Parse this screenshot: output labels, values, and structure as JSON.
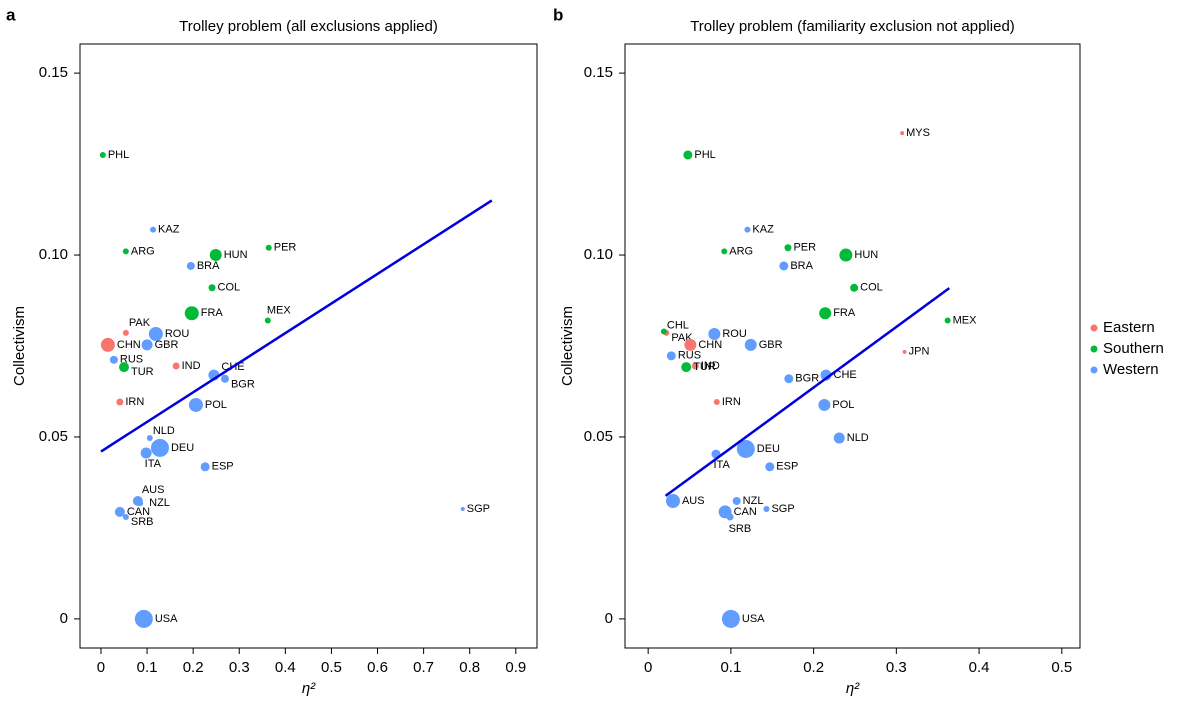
{
  "chart_data": [
    {
      "type": "scatter",
      "panel_label": "a",
      "title": "Trolley problem (all exclusions applied)",
      "xlabel": "η²",
      "ylabel": "Collectivism",
      "xlim": [
        -0.0455,
        0.946
      ],
      "ylim": [
        -0.008,
        0.158
      ],
      "xticks": [
        0,
        0.1,
        0.2,
        0.3,
        0.4,
        0.5,
        0.6,
        0.7,
        0.8,
        0.9
      ],
      "yticks": [
        0,
        0.05,
        {
          "value": 0.1,
          "label": "0.10"
        },
        0.15
      ],
      "legend": false,
      "series": [
        {
          "name": "Eastern",
          "color": "#f8766d",
          "labels": [
            "PAK",
            "CHN",
            "IND",
            "IRN"
          ],
          "x": [
            0.054,
            0.015,
            0.163,
            0.041
          ],
          "y": [
            0.0786,
            0.0753,
            0.0695,
            0.0596
          ],
          "sizes": [
            3,
            7,
            3.5,
            3.5
          ]
        },
        {
          "name": "Southern",
          "color": "#00ba38",
          "labels": [
            "PHL",
            "ARG",
            "HUN",
            "PER",
            "COL",
            "MEX",
            "FRA",
            "TUR"
          ],
          "x": [
            0.004,
            0.054,
            0.249,
            0.364,
            0.241,
            0.362,
            0.197,
            0.05
          ],
          "y": [
            0.1275,
            0.101,
            0.1,
            0.102,
            0.091,
            0.082,
            0.084,
            0.0692
          ],
          "sizes": [
            3,
            3,
            6,
            3,
            3.5,
            3,
            7,
            5
          ]
        },
        {
          "name": "Western",
          "color": "#619cff",
          "labels": [
            "KAZ",
            "BRA",
            "ROU",
            "GBR",
            "RUS",
            "CHE",
            "BGR",
            "POL",
            "NLD",
            "DEU",
            "ITA",
            "ESP",
            "SGP",
            "AUS",
            "NZL",
            "CAN",
            "SRB",
            "USA"
          ],
          "x": [
            0.113,
            0.195,
            0.119,
            0.1,
            0.028,
            0.245,
            0.269,
            0.206,
            0.106,
            0.128,
            0.098,
            0.226,
            0.785,
            0.08,
            0.085,
            0.041,
            0.054,
            0.093
          ],
          "y": [
            0.107,
            0.097,
            0.0783,
            0.0753,
            0.0712,
            0.067,
            0.066,
            0.0588,
            0.0497,
            0.047,
            0.0456,
            0.0418,
            0.0302,
            0.0324,
            0.0318,
            0.0294,
            0.028,
            0
          ],
          "sizes": [
            3,
            4,
            7,
            5.5,
            4,
            5.5,
            4,
            7,
            3,
            9,
            5.5,
            4.5,
            2,
            5,
            3,
            5,
            3,
            9
          ]
        }
      ],
      "fit": {
        "color": "#0000dd",
        "x": [
          0,
          0.848
        ],
        "y": [
          0.046,
          0.115
        ]
      }
    },
    {
      "type": "scatter",
      "panel_label": "b",
      "title": "Trolley problem (familiarity exclusion not applied)",
      "xlabel": "η²",
      "ylabel": "Collectivism",
      "xlim": [
        -0.028,
        0.522
      ],
      "ylim": [
        -0.008,
        0.158
      ],
      "xticks": [
        0,
        0.1,
        0.2,
        0.3,
        0.4,
        0.5
      ],
      "yticks": [
        0,
        0.05,
        {
          "value": 0.1,
          "label": "0.10"
        },
        0.15
      ],
      "legend": "right",
      "series": [
        {
          "name": "Eastern",
          "color": "#f8766d",
          "labels": [
            "MYS",
            "PAK",
            "CHN",
            "JPN",
            "IND",
            "IRN"
          ],
          "x": [
            0.307,
            0.022,
            0.051,
            0.31,
            0.057,
            0.083
          ],
          "y": [
            0.1335,
            0.0786,
            0.0753,
            0.0734,
            0.0695,
            0.0596
          ],
          "sizes": [
            2,
            3,
            6,
            2,
            3.5,
            3
          ]
        },
        {
          "name": "Southern",
          "color": "#00ba38",
          "labels": [
            "PHL",
            "ARG",
            "PER",
            "HUN",
            "COL",
            "CHL",
            "MEX",
            "FRA",
            "TUR"
          ],
          "x": [
            0.048,
            0.092,
            0.169,
            0.239,
            0.249,
            0.019,
            0.362,
            0.214,
            0.046
          ],
          "y": [
            0.1275,
            0.101,
            0.102,
            0.1,
            0.091,
            0.079,
            0.082,
            0.084,
            0.0692
          ],
          "sizes": [
            4.5,
            3,
            3.5,
            6.5,
            4,
            3,
            3,
            6,
            5
          ]
        },
        {
          "name": "Western",
          "color": "#619cff",
          "labels": [
            "KAZ",
            "BRA",
            "ROU",
            "GBR",
            "RUS",
            "BGR",
            "CHE",
            "POL",
            "NLD",
            "DEU",
            "ITA",
            "ESP",
            "AUS",
            "NZL",
            "SGP",
            "CAN",
            "SRB",
            "USA"
          ],
          "x": [
            0.12,
            0.164,
            0.08,
            0.124,
            0.028,
            0.17,
            0.215,
            0.213,
            0.231,
            0.118,
            0.082,
            0.147,
            0.03,
            0.107,
            0.143,
            0.093,
            0.099,
            0.1
          ],
          "y": [
            0.107,
            0.097,
            0.0783,
            0.0753,
            0.0723,
            0.066,
            0.067,
            0.0588,
            0.0497,
            0.0467,
            0.0453,
            0.0418,
            0.0324,
            0.0324,
            0.0302,
            0.0294,
            0.028,
            0
          ],
          "sizes": [
            3,
            4.5,
            6,
            6,
            4.5,
            4.5,
            5.5,
            6,
            5.5,
            9,
            4.5,
            4.5,
            7,
            4,
            3,
            6.5,
            3.5,
            9
          ]
        }
      ],
      "fit": {
        "color": "#0000dd",
        "x": [
          0.021,
          0.364
        ],
        "y": [
          0.0338,
          0.0909
        ]
      }
    }
  ]
}
